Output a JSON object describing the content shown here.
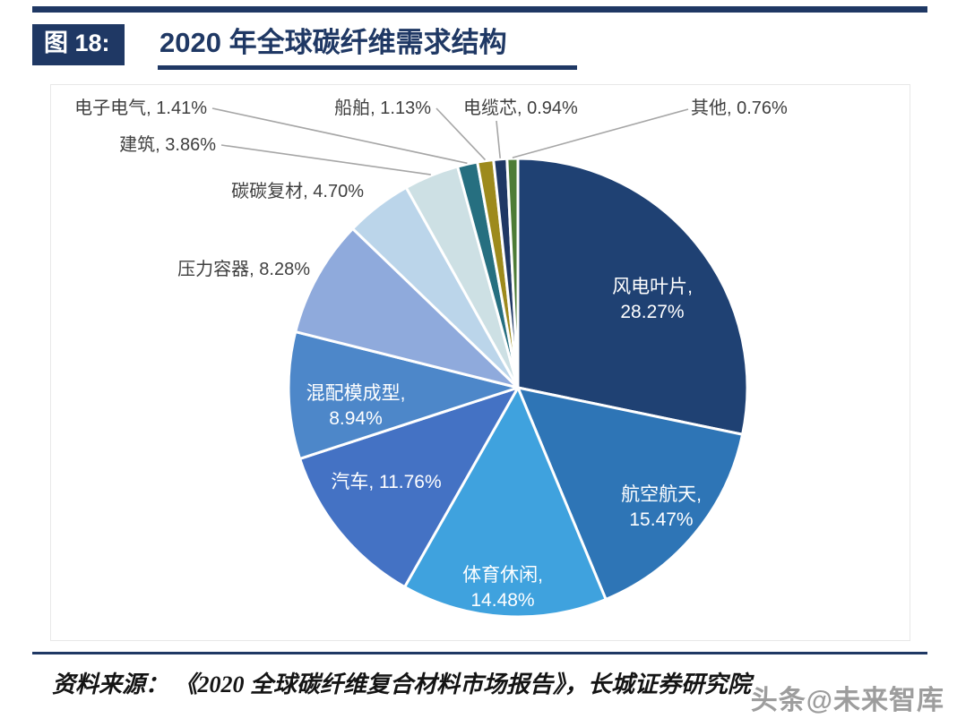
{
  "header": {
    "figure_label": "图 18:",
    "title": "2020 年全球碳纤维需求结构"
  },
  "chart_data": {
    "type": "pie",
    "title": "2020 年全球碳纤维需求结构",
    "start_angle_deg": 0,
    "direction": "clockwise",
    "unit": "%",
    "legend": "none",
    "slices": [
      {
        "name": "风电叶片",
        "value": 28.27,
        "display": "28.27%",
        "color": "#1F4173",
        "label_inside": true
      },
      {
        "name": "航空航天",
        "value": 15.47,
        "display": "15.47%",
        "color": "#2E75B6",
        "label_inside": true
      },
      {
        "name": "体育休闲",
        "value": 14.48,
        "display": "14.48%",
        "color": "#3FA2DE",
        "label_inside": true
      },
      {
        "name": "汽车",
        "value": 11.76,
        "display": "11.76%",
        "color": "#4472C4",
        "label_inside": true
      },
      {
        "name": "混配模成型",
        "value": 8.94,
        "display": "8.94%",
        "color": "#4D87C9",
        "label_inside": true
      },
      {
        "name": "压力容器",
        "value": 8.28,
        "display": "8.28%",
        "color": "#8FAADC",
        "label_inside": false
      },
      {
        "name": "碳碳复材",
        "value": 4.7,
        "display": "4.70%",
        "color": "#BBD5EA",
        "label_inside": false
      },
      {
        "name": "建筑",
        "value": 3.86,
        "display": "3.86%",
        "color": "#CDE0E4",
        "label_inside": false
      },
      {
        "name": "电子电气",
        "value": 1.41,
        "display": "1.41%",
        "color": "#266F80",
        "label_inside": false
      },
      {
        "name": "船舶",
        "value": 1.13,
        "display": "1.13%",
        "color": "#9D8A1C",
        "label_inside": false
      },
      {
        "name": "电缆芯",
        "value": 0.94,
        "display": "0.94%",
        "color": "#1F3864",
        "label_inside": false
      },
      {
        "name": "其他",
        "value": 0.76,
        "display": "0.76%",
        "color": "#4E7C36",
        "label_inside": false
      }
    ]
  },
  "footer": {
    "source": "资料来源： 《2020 全球碳纤维复合材料市场报告》，长城证券研究院",
    "watermark": "头条@未来智库"
  },
  "colors": {
    "accent_navy": "#1F3864",
    "leader_line": "#A6A6A6",
    "inside_label": "#FFFFFF",
    "outside_label": "#3F3F3F",
    "slice_gap": "#FFFFFF"
  }
}
